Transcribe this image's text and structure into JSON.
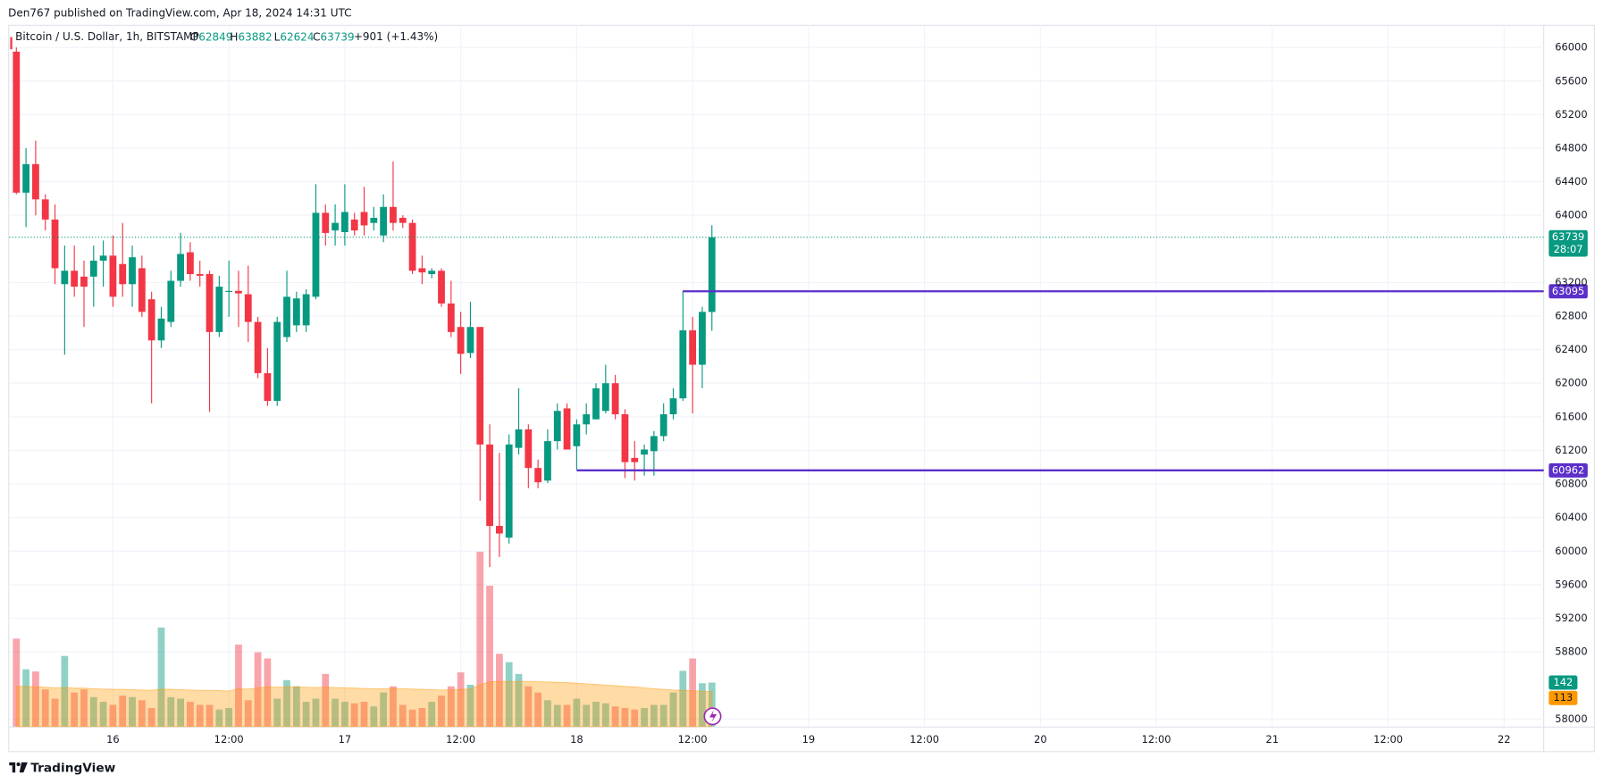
{
  "header": {
    "published": "Den767 published on TradingView.com, Apr 18, 2024 14:31 UTC"
  },
  "chart_data": {
    "type": "candlestick",
    "title": "Bitcoin / U.S. Dollar, 1h, BITSTAMP",
    "ohlc_legend": [
      "O",
      "H",
      "L",
      "C"
    ],
    "change": "+901 (+1.43%)",
    "x": [
      0,
      1,
      2,
      3,
      4,
      5,
      6,
      7,
      8,
      9,
      10,
      11,
      12,
      13,
      14,
      15,
      16,
      17,
      18,
      19,
      20,
      21,
      22,
      23,
      24,
      25,
      26,
      27,
      28,
      29,
      30,
      31,
      32,
      33,
      34,
      35,
      36,
      37,
      38,
      39,
      40,
      41,
      42,
      43,
      44,
      45,
      46,
      47,
      48,
      49,
      50,
      51,
      52,
      53,
      54,
      55,
      56,
      57,
      58,
      59,
      60,
      61,
      62,
      63,
      64,
      65,
      66,
      67,
      68,
      69,
      70,
      71,
      72
    ],
    "open": [
      65950,
      64270,
      64610,
      64190,
      63950,
      63180,
      63340,
      63270,
      63270,
      63460,
      63520,
      63420,
      63180,
      63370,
      63000,
      62510,
      62730,
      63220,
      63560,
      63300,
      63300,
      62610,
      63090,
      63100,
      63060,
      62730,
      62120,
      61790,
      62550,
      62690,
      62690,
      63030,
      64030,
      63820,
      63800,
      63950,
      64040,
      63910,
      63760,
      64100,
      63970,
      63910,
      63370,
      63300,
      63340,
      62950,
      62670,
      62360,
      62670,
      61270,
      60300,
      60160,
      61230,
      61450,
      60990,
      60840,
      61310,
      61700,
      61250,
      61510,
      61570,
      61670,
      62000,
      61630,
      61110,
      61150,
      61190,
      61370,
      61630,
      61820,
      62630,
      62220,
      62849
    ],
    "high": [
      66000,
      64800,
      64890,
      64250,
      64130,
      63640,
      63640,
      63460,
      63640,
      63700,
      63760,
      63910,
      63640,
      63520,
      63090,
      62910,
      63340,
      63790,
      63680,
      63460,
      63340,
      63280,
      63460,
      63340,
      63400,
      62790,
      62420,
      62790,
      63340,
      63090,
      63120,
      64370,
      64130,
      64130,
      64370,
      64030,
      64340,
      64100,
      64250,
      64640,
      64000,
      63950,
      63520,
      63370,
      63370,
      63220,
      62850,
      62970,
      62670,
      61510,
      61170,
      61390,
      61940,
      61510,
      61090,
      61450,
      61760,
      61760,
      61570,
      61760,
      62000,
      62220,
      62100,
      61690,
      61310,
      61270,
      61430,
      61760,
      61940,
      63100,
      62790,
      62910,
      63882
    ],
    "low": [
      64250,
      63860,
      64000,
      63820,
      63180,
      62340,
      63030,
      62670,
      62910,
      63150,
      62910,
      63030,
      62910,
      62790,
      61760,
      62420,
      62670,
      63150,
      63220,
      63150,
      61660,
      62550,
      62790,
      62670,
      62490,
      62060,
      61730,
      61730,
      62490,
      62610,
      62610,
      63000,
      63640,
      63640,
      63640,
      63760,
      63760,
      63820,
      63680,
      63820,
      63850,
      63300,
      63180,
      63250,
      62910,
      62550,
      62110,
      62300,
      60600,
      59810,
      59930,
      60090,
      61150,
      60750,
      60750,
      60810,
      61210,
      61210,
      60970,
      61390,
      61570,
      61640,
      61570,
      60870,
      60840,
      60900,
      60900,
      61310,
      61570,
      61790,
      61640,
      61940,
      62624
    ],
    "close": [
      64270,
      64610,
      64190,
      63950,
      63370,
      63340,
      63150,
      63150,
      63460,
      63520,
      63030,
      63180,
      63500,
      62850,
      62510,
      62770,
      63220,
      63540,
      63300,
      63280,
      62610,
      63150,
      63100,
      63070,
      62730,
      62120,
      61790,
      62730,
      63030,
      63010,
      63060,
      64030,
      63790,
      63910,
      64040,
      63820,
      63880,
      63970,
      64100,
      63910,
      63910,
      63340,
      63320,
      63340,
      62950,
      62610,
      62350,
      62670,
      61270,
      60300,
      60210,
      61270,
      61450,
      60990,
      60820,
      61310,
      61670,
      61210,
      61510,
      61630,
      61940,
      62000,
      61630,
      61060,
      61060,
      61210,
      61370,
      61630,
      61820,
      62630,
      62220,
      62850,
      63739
    ],
    "volume": [
      284,
      185,
      178,
      120,
      90,
      228,
      110,
      120,
      95,
      80,
      70,
      100,
      95,
      85,
      60,
      320,
      95,
      90,
      80,
      70,
      70,
      55,
      60,
      265,
      85,
      240,
      220,
      90,
      150,
      130,
      80,
      90,
      170,
      90,
      80,
      75,
      80,
      65,
      110,
      130,
      70,
      55,
      60,
      80,
      100,
      130,
      175,
      135,
      565,
      455,
      235,
      208,
      170,
      130,
      110,
      85,
      70,
      70,
      90,
      70,
      80,
      75,
      65,
      60,
      55,
      60,
      70,
      70,
      110,
      180,
      220,
      140,
      142
    ],
    "volume_ma": [
      130,
      130,
      128,
      127,
      125,
      126,
      124,
      124,
      122,
      121,
      120,
      120,
      119,
      118,
      117,
      121,
      120,
      119,
      118,
      117,
      117,
      116,
      115,
      122,
      121,
      125,
      128,
      127,
      128,
      128,
      127,
      126,
      127,
      126,
      125,
      124,
      123,
      122,
      122,
      123,
      122,
      121,
      120,
      119,
      118,
      118,
      120,
      121,
      135,
      145,
      146,
      146,
      146,
      146,
      145,
      144,
      143,
      142,
      140,
      138,
      136,
      134,
      132,
      130,
      128,
      125,
      122,
      120,
      118,
      117,
      116,
      114,
      113
    ],
    "up_color": "#089981",
    "down_color": "#f23645",
    "ma_color": "#ff9800",
    "level_color": "#5b2fc9",
    "xlim": [
      -0.74,
      158.1
    ],
    "xticks": [
      {
        "value": 10,
        "label": "16"
      },
      {
        "value": 22,
        "label": "12:00"
      },
      {
        "value": 34,
        "label": "17"
      },
      {
        "value": 46,
        "label": "12:00"
      },
      {
        "value": 58,
        "label": "18"
      },
      {
        "value": 70,
        "label": "12:00"
      },
      {
        "value": 82,
        "label": "19"
      },
      {
        "value": 94,
        "label": "12:00"
      },
      {
        "value": 106,
        "label": "20"
      },
      {
        "value": 118,
        "label": "12:00"
      },
      {
        "value": 130,
        "label": "21"
      },
      {
        "value": 142,
        "label": "12:00"
      },
      {
        "value": 154,
        "label": "22"
      }
    ],
    "ylim": [
      57910,
      66270
    ],
    "yticks": [
      58000,
      58800,
      59200,
      59600,
      60000,
      60400,
      60800,
      61200,
      61600,
      62000,
      62400,
      62800,
      63200,
      64000,
      64400,
      64800,
      65200,
      65600,
      66000
    ],
    "countdown": "28:07",
    "levels": [
      {
        "value": 63095,
        "x": 69
      },
      {
        "value": 60962,
        "x": 58
      }
    ],
    "grid": true
  },
  "footer": {
    "brand": "TradingView"
  }
}
